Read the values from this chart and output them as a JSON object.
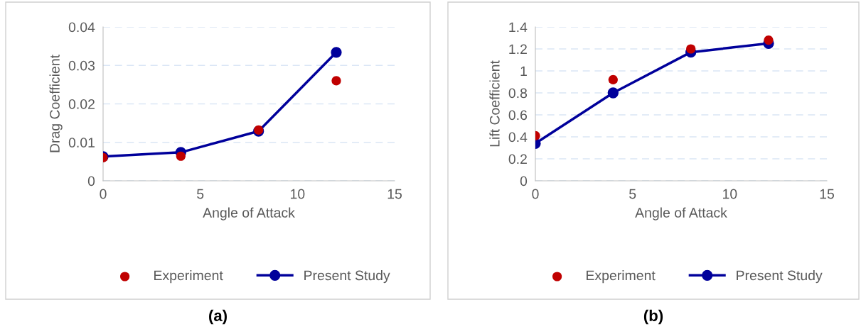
{
  "chart_data": [
    {
      "type": "line",
      "xlabel": "Angle of Attack",
      "ylabel": "Drag Coefficient",
      "annotations": [
        "(a)"
      ],
      "x": [
        0,
        4,
        8,
        12
      ],
      "xlim": [
        0,
        15
      ],
      "xticks": [
        0,
        5,
        10,
        15
      ],
      "ylim": [
        0,
        0.04
      ],
      "yticks": [
        0,
        0.01,
        0.02,
        0.03,
        0.04
      ],
      "grid": "y",
      "legend": "bottom",
      "series": [
        {
          "name": "Experiment",
          "type": "scatter",
          "color": "#c00000",
          "marker": "circle",
          "values": [
            0.006,
            0.0064,
            0.0132,
            0.026
          ]
        },
        {
          "name": "Present Study",
          "color": "#00009b",
          "marker": "circle",
          "line_style": "solid",
          "values": [
            0.0063,
            0.0074,
            0.0129,
            0.0334
          ]
        }
      ]
    },
    {
      "type": "line",
      "xlabel": "Angle of Attack",
      "ylabel": "Lift Coefficient",
      "annotations": [
        "(b)"
      ],
      "x": [
        0,
        4,
        8,
        12
      ],
      "xlim": [
        0,
        15
      ],
      "xticks": [
        0,
        5,
        10,
        15
      ],
      "ylim": [
        0,
        1.4
      ],
      "yticks": [
        0,
        0.2,
        0.4,
        0.6,
        0.8,
        1,
        1.2,
        1.4
      ],
      "grid": "y",
      "legend": "bottom",
      "series": [
        {
          "name": "Experiment",
          "type": "scatter",
          "color": "#c00000",
          "marker": "circle",
          "values": [
            0.41,
            0.92,
            1.2,
            1.28
          ]
        },
        {
          "name": "Present Study",
          "color": "#00009b",
          "marker": "circle",
          "line_style": "solid",
          "values": [
            0.34,
            0.8,
            1.17,
            1.25
          ]
        }
      ]
    }
  ]
}
